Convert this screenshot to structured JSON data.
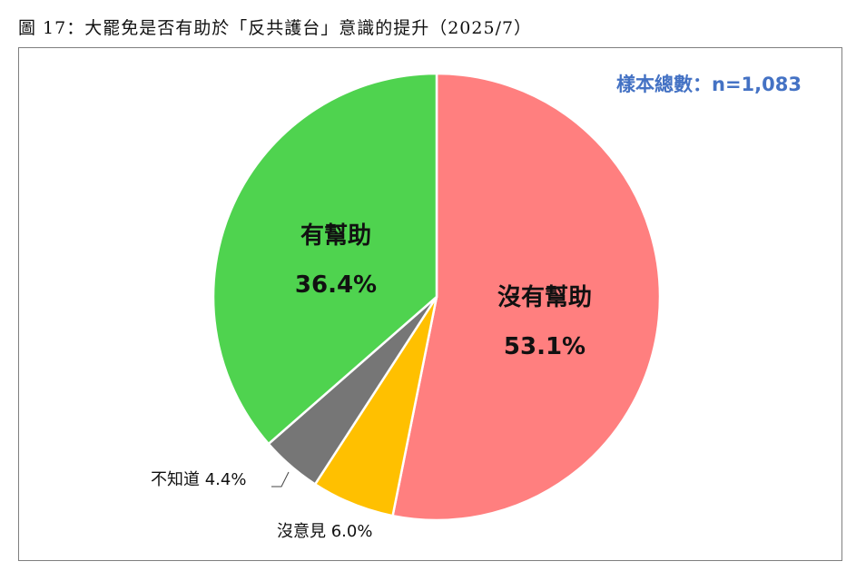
{
  "title": "圖 17：大罷免是否有助於「反共護台」意識的提升（2025/7）",
  "sample_size": "樣本總數：n=1,083",
  "chart_data": {
    "type": "pie",
    "slices": [
      {
        "label": "沒有幫助",
        "value": 53.1,
        "value_label": "53.1%",
        "color": "#FF7F7F"
      },
      {
        "label": "沒意見",
        "value": 6.0,
        "value_label": "6.0%",
        "color": "#FFC000"
      },
      {
        "label": "不知道",
        "value": 4.4,
        "value_label": "4.4%",
        "color": "#767676"
      },
      {
        "label": "有幫助",
        "value": 36.4,
        "value_label": "36.4%",
        "color": "#4FD34F"
      }
    ],
    "start": "12 o'clock",
    "direction": "clockwise"
  }
}
